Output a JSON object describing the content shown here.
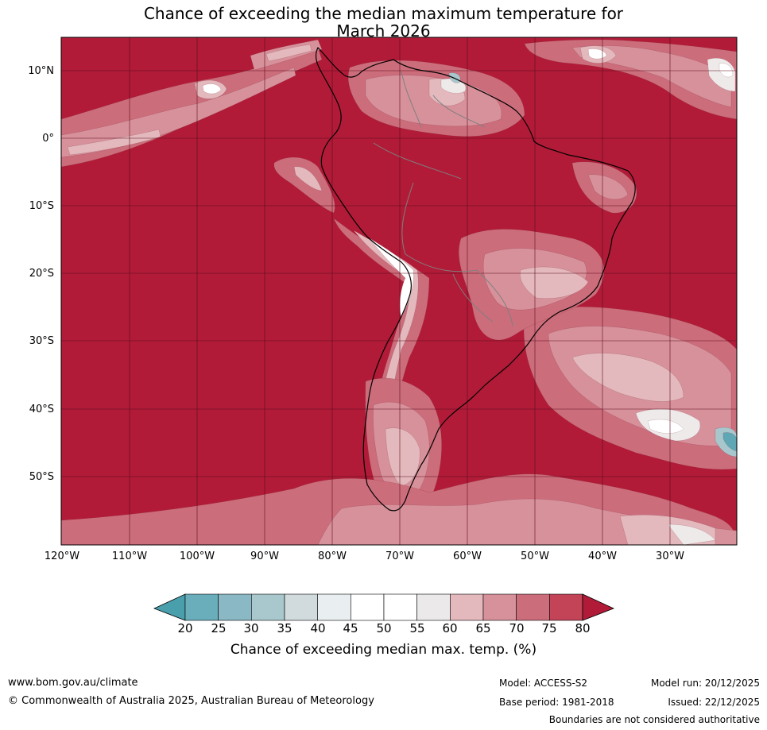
{
  "title": {
    "line1": "Chance of exceeding the median maximum temperature for",
    "line2": "March 2026"
  },
  "map": {
    "latitude_labels": [
      "10°N",
      "0°",
      "10°S",
      "20°S",
      "30°S",
      "40°S",
      "50°S"
    ],
    "longitude_labels": [
      "120°W",
      "110°W",
      "100°W",
      "90°W",
      "80°W",
      "70°W",
      "60°W",
      "50°W",
      "40°W",
      "30°W"
    ],
    "colors": {
      "ocean_high": "#b11b38",
      "land_high": "#b11b38",
      "band_75": "#c34457",
      "band_70": "#cc6d7b",
      "band_65": "#d7919b",
      "band_60": "#e3b9bd",
      "band_55": "#eeeaea",
      "band_50": "#ffffff",
      "band_30": "#a7c7cd",
      "band_20": "#5fa7b5",
      "coastline": "#000000",
      "borders": "#7f7f7f"
    }
  },
  "colorbar": {
    "ticks": [
      "20",
      "25",
      "30",
      "35",
      "40",
      "45",
      "50",
      "55",
      "60",
      "65",
      "70",
      "75",
      "80"
    ],
    "colors": [
      "#6aaebb",
      "#8ab8c4",
      "#a9c8cd",
      "#d1dadc",
      "#e9eff1",
      "#ffffff",
      "#ffffff",
      "#ebe9ea",
      "#e3b9bd",
      "#d7919b",
      "#cc6d7b",
      "#c34457"
    ],
    "under_color": "#4a9fad",
    "over_color": "#b11b38",
    "label": "Chance of exceeding median max. temp. (%)"
  },
  "footer": {
    "website": "www.bom.gov.au/climate",
    "copyright": "© Commonwealth of Australia 2025, Australian Bureau of Meteorology",
    "model": "Model: ACCESS-S2",
    "base_period": "Base period: 1981-2018",
    "model_run": "Model run: 20/12/2025",
    "issued": "Issued: 22/12/2025",
    "disclaimer": "Boundaries are not considered authoritative"
  }
}
